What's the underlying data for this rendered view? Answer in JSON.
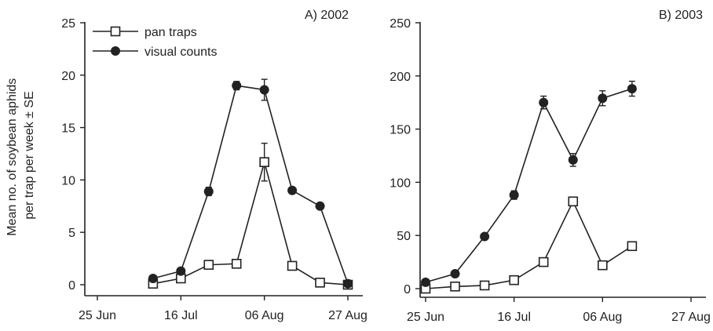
{
  "chart_data": [
    {
      "type": "line",
      "title": "A) 2002",
      "ylabel": "Mean no. of soybean aphids per trap per week ± SE",
      "ylim": [
        0,
        25
      ],
      "yticks": [
        0,
        5,
        10,
        15,
        20,
        25
      ],
      "xlim": [
        "2002-06-25",
        "2002-08-27"
      ],
      "xticks": [
        {
          "date": "2002-06-25",
          "label": "25 Jun"
        },
        {
          "date": "2002-07-16",
          "label": "16 Jul"
        },
        {
          "date": "2002-08-06",
          "label": "06 Aug"
        },
        {
          "date": "2002-08-27",
          "label": "27 Aug"
        }
      ],
      "legend": {
        "placement": "top-left"
      },
      "series": [
        {
          "name": "pan traps",
          "marker": "open-square",
          "points": [
            {
              "x": "2002-07-09",
              "y": 0.1,
              "se": 0
            },
            {
              "x": "2002-07-16",
              "y": 0.6,
              "se": 0.1
            },
            {
              "x": "2002-07-23",
              "y": 1.9,
              "se": 0.2
            },
            {
              "x": "2002-07-30",
              "y": 2.0,
              "se": 0.1
            },
            {
              "x": "2002-08-06",
              "y": 11.7,
              "se": 1.8
            },
            {
              "x": "2002-08-13",
              "y": 1.8,
              "se": 0.2
            },
            {
              "x": "2002-08-20",
              "y": 0.2,
              "se": 0
            },
            {
              "x": "2002-08-27",
              "y": 0.0,
              "se": 0
            }
          ]
        },
        {
          "name": "visual counts",
          "marker": "filled-circle",
          "points": [
            {
              "x": "2002-07-09",
              "y": 0.6,
              "se": 0.1
            },
            {
              "x": "2002-07-16",
              "y": 1.3,
              "se": 0.1
            },
            {
              "x": "2002-07-23",
              "y": 8.9,
              "se": 0.4
            },
            {
              "x": "2002-07-30",
              "y": 19.0,
              "se": 0.4
            },
            {
              "x": "2002-08-06",
              "y": 18.6,
              "se": 1.0
            },
            {
              "x": "2002-08-13",
              "y": 9.0,
              "se": 0.2
            },
            {
              "x": "2002-08-20",
              "y": 7.5,
              "se": 0.2
            },
            {
              "x": "2002-08-27",
              "y": 0.1,
              "se": 0
            }
          ]
        }
      ]
    },
    {
      "type": "line",
      "title": "B) 2003",
      "ylim": [
        0,
        250
      ],
      "yticks": [
        0,
        50,
        100,
        150,
        200,
        250
      ],
      "xlim": [
        "2003-06-25",
        "2003-08-27"
      ],
      "xticks": [
        {
          "date": "2003-06-25",
          "label": "25 Jun"
        },
        {
          "date": "2003-07-16",
          "label": "16 Jul"
        },
        {
          "date": "2003-08-06",
          "label": "06 Aug"
        },
        {
          "date": "2003-08-27",
          "label": "27 Aug"
        }
      ],
      "series": [
        {
          "name": "pan traps",
          "marker": "open-square",
          "points": [
            {
              "x": "2003-06-25",
              "y": 0,
              "se": 0
            },
            {
              "x": "2003-07-02",
              "y": 2,
              "se": 0
            },
            {
              "x": "2003-07-09",
              "y": 3,
              "se": 0
            },
            {
              "x": "2003-07-16",
              "y": 8,
              "se": 1
            },
            {
              "x": "2003-07-23",
              "y": 25,
              "se": 2
            },
            {
              "x": "2003-07-30",
              "y": 82,
              "se": 4
            },
            {
              "x": "2003-08-06",
              "y": 22,
              "se": 2
            },
            {
              "x": "2003-08-13",
              "y": 40,
              "se": 3
            }
          ]
        },
        {
          "name": "visual counts",
          "marker": "filled-circle",
          "points": [
            {
              "x": "2003-06-25",
              "y": 6,
              "se": 1
            },
            {
              "x": "2003-07-02",
              "y": 14,
              "se": 1
            },
            {
              "x": "2003-07-09",
              "y": 49,
              "se": 2
            },
            {
              "x": "2003-07-16",
              "y": 88,
              "se": 4
            },
            {
              "x": "2003-07-23",
              "y": 175,
              "se": 6
            },
            {
              "x": "2003-07-30",
              "y": 121,
              "se": 6
            },
            {
              "x": "2003-08-06",
              "y": 179,
              "se": 7
            },
            {
              "x": "2003-08-13",
              "y": 188,
              "se": 7
            }
          ]
        }
      ]
    }
  ]
}
